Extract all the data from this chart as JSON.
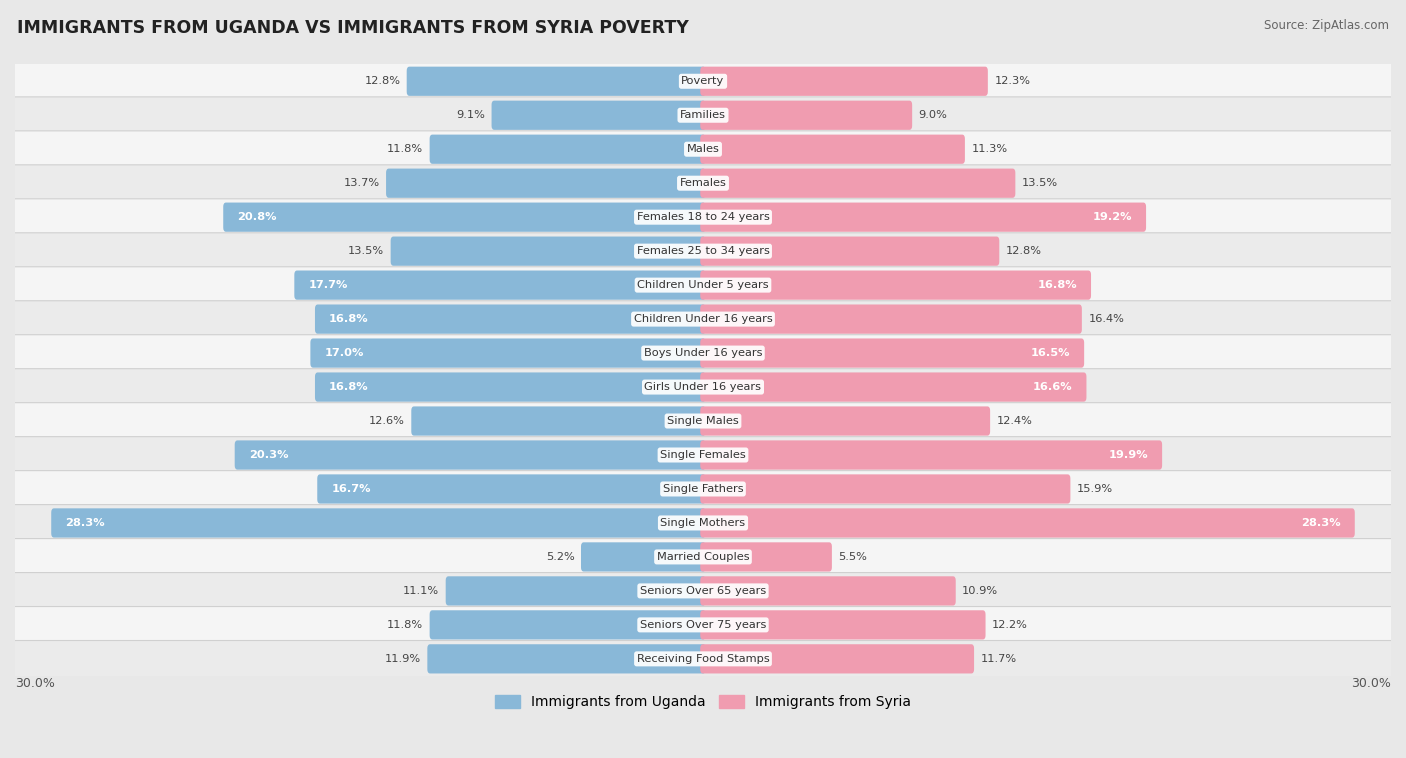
{
  "title": "IMMIGRANTS FROM UGANDA VS IMMIGRANTS FROM SYRIA POVERTY",
  "source": "Source: ZipAtlas.com",
  "categories": [
    "Poverty",
    "Families",
    "Males",
    "Females",
    "Females 18 to 24 years",
    "Females 25 to 34 years",
    "Children Under 5 years",
    "Children Under 16 years",
    "Boys Under 16 years",
    "Girls Under 16 years",
    "Single Males",
    "Single Females",
    "Single Fathers",
    "Single Mothers",
    "Married Couples",
    "Seniors Over 65 years",
    "Seniors Over 75 years",
    "Receiving Food Stamps"
  ],
  "uganda_values": [
    12.8,
    9.1,
    11.8,
    13.7,
    20.8,
    13.5,
    17.7,
    16.8,
    17.0,
    16.8,
    12.6,
    20.3,
    16.7,
    28.3,
    5.2,
    11.1,
    11.8,
    11.9
  ],
  "syria_values": [
    12.3,
    9.0,
    11.3,
    13.5,
    19.2,
    12.8,
    16.8,
    16.4,
    16.5,
    16.6,
    12.4,
    19.9,
    15.9,
    28.3,
    5.5,
    10.9,
    12.2,
    11.7
  ],
  "max_val": 30.0,
  "uganda_color": "#89b8d8",
  "syria_color": "#f09cb0",
  "uganda_label": "Immigrants from Uganda",
  "syria_label": "Immigrants from Syria",
  "bg_color": "#e8e8e8",
  "row_bg_light": "#f2f2f2",
  "row_bg_dark": "#e0e0e0",
  "label_threshold": 16.5,
  "value_label_white_threshold": 16.5
}
